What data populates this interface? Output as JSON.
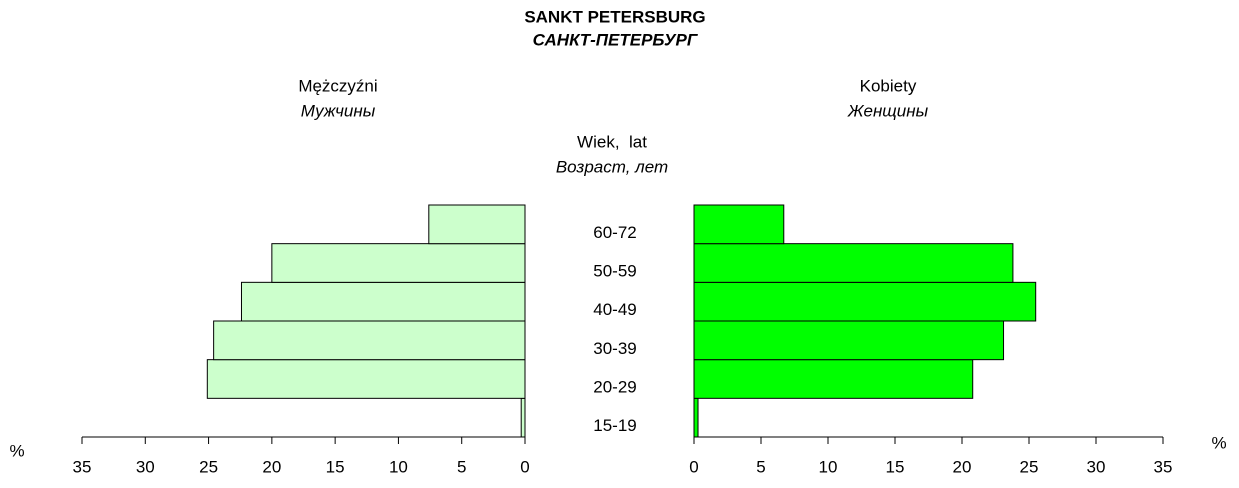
{
  "chart_data": {
    "type": "pyramid",
    "title": "SANKT PETERSBURG",
    "subtitle": "САНКТ-ПЕТЕРБУРГ",
    "y_label": "Wiek,  lat",
    "y_label_ru": "Возраст, лет",
    "x_label": "%",
    "categories": [
      "15-19",
      "20-29",
      "30-39",
      "40-49",
      "50-59",
      "60-72"
    ],
    "series": [
      {
        "name": "Mężczyźni",
        "name_ru": "Мужчины",
        "color": "#ccffcc",
        "side": "left",
        "values": [
          0.3,
          25.1,
          24.6,
          22.4,
          20.0,
          7.6
        ]
      },
      {
        "name": "Kobiety",
        "name_ru": "Женщины",
        "color": "#00ff00",
        "side": "right",
        "values": [
          0.3,
          20.8,
          23.1,
          25.5,
          23.8,
          6.7
        ]
      }
    ],
    "xlim": [
      0,
      35
    ],
    "xticks": [
      0,
      5,
      10,
      15,
      20,
      25,
      30,
      35
    ]
  }
}
